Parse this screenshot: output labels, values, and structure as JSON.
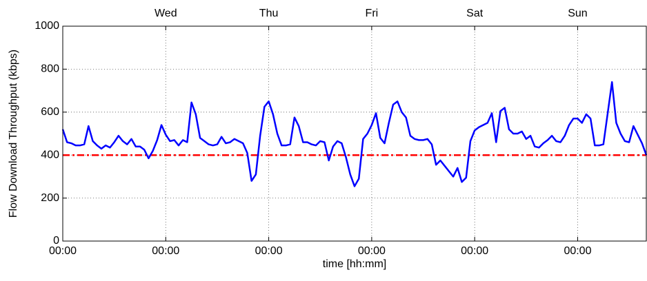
{
  "chart_data": {
    "type": "line",
    "x_label": "time [hh:mm]",
    "y_label": "Flow Download Throughput (kbps)",
    "x": [
      0,
      1,
      2,
      3,
      4,
      5,
      6,
      7,
      8,
      9,
      10,
      11,
      12,
      13,
      14,
      15,
      16,
      17,
      18,
      19,
      20,
      21,
      22,
      23,
      24,
      25,
      26,
      27,
      28,
      29,
      30,
      31,
      32,
      33,
      34,
      35,
      36,
      37,
      38,
      39,
      40,
      41,
      42,
      43,
      44,
      45,
      46,
      47,
      48,
      49,
      50,
      51,
      52,
      53,
      54,
      55,
      56,
      57,
      58,
      59,
      60,
      61,
      62,
      63,
      64,
      65,
      66,
      67,
      68,
      69,
      70,
      71,
      72,
      73,
      74,
      75,
      76,
      77,
      78,
      79,
      80,
      81,
      82,
      83,
      84,
      85,
      86,
      87,
      88,
      89,
      90,
      91,
      92,
      93,
      94,
      95,
      96,
      97,
      98,
      99,
      100,
      101,
      102,
      103,
      104,
      105,
      106,
      107,
      108,
      109,
      110,
      111,
      112,
      113,
      114,
      115,
      116,
      117,
      118,
      119,
      120,
      121,
      122,
      123,
      124,
      125,
      126,
      127,
      128,
      129,
      130,
      131,
      132,
      133,
      134,
      135,
      136
    ],
    "series": [
      {
        "name": "throughput",
        "color": "#0000ff",
        "values": [
          520,
          460,
          455,
          445,
          445,
          450,
          535,
          465,
          445,
          430,
          445,
          435,
          460,
          490,
          465,
          450,
          475,
          440,
          440,
          425,
          385,
          420,
          470,
          540,
          495,
          465,
          470,
          445,
          470,
          460,
          645,
          590,
          480,
          465,
          450,
          445,
          450,
          485,
          455,
          460,
          475,
          465,
          455,
          410,
          280,
          310,
          490,
          625,
          650,
          590,
          500,
          445,
          445,
          450,
          575,
          535,
          460,
          460,
          450,
          445,
          465,
          460,
          375,
          440,
          465,
          455,
          390,
          310,
          255,
          290,
          475,
          500,
          540,
          595,
          480,
          455,
          550,
          635,
          650,
          600,
          575,
          490,
          475,
          470,
          470,
          475,
          450,
          355,
          375,
          350,
          325,
          300,
          340,
          275,
          295,
          465,
          515,
          530,
          540,
          550,
          595,
          460,
          605,
          620,
          520,
          500,
          500,
          510,
          475,
          490,
          440,
          435,
          455,
          470,
          490,
          465,
          460,
          490,
          540,
          570,
          570,
          550,
          590,
          570,
          445,
          445,
          450,
          595,
          740,
          550,
          500,
          465,
          460,
          535,
          495,
          455,
          400
        ]
      }
    ],
    "threshold": {
      "value": 400,
      "color": "#ff0000"
    },
    "xlim": [
      0,
      136
    ],
    "ylim": [
      0,
      1000
    ],
    "xticks": [
      {
        "value": 0,
        "label": "00:00"
      },
      {
        "value": 24,
        "label": "00:00"
      },
      {
        "value": 48,
        "label": "00:00"
      },
      {
        "value": 72,
        "label": "00:00"
      },
      {
        "value": 96,
        "label": "00:00"
      },
      {
        "value": 120,
        "label": "00:00"
      }
    ],
    "top_xticks": [
      {
        "value": 24,
        "label": "Wed"
      },
      {
        "value": 48,
        "label": "Thu"
      },
      {
        "value": 72,
        "label": "Fri"
      },
      {
        "value": 96,
        "label": "Sat"
      },
      {
        "value": 120,
        "label": "Sun"
      }
    ],
    "yticks": [
      0,
      200,
      400,
      600,
      800,
      1000
    ],
    "grid": true
  }
}
